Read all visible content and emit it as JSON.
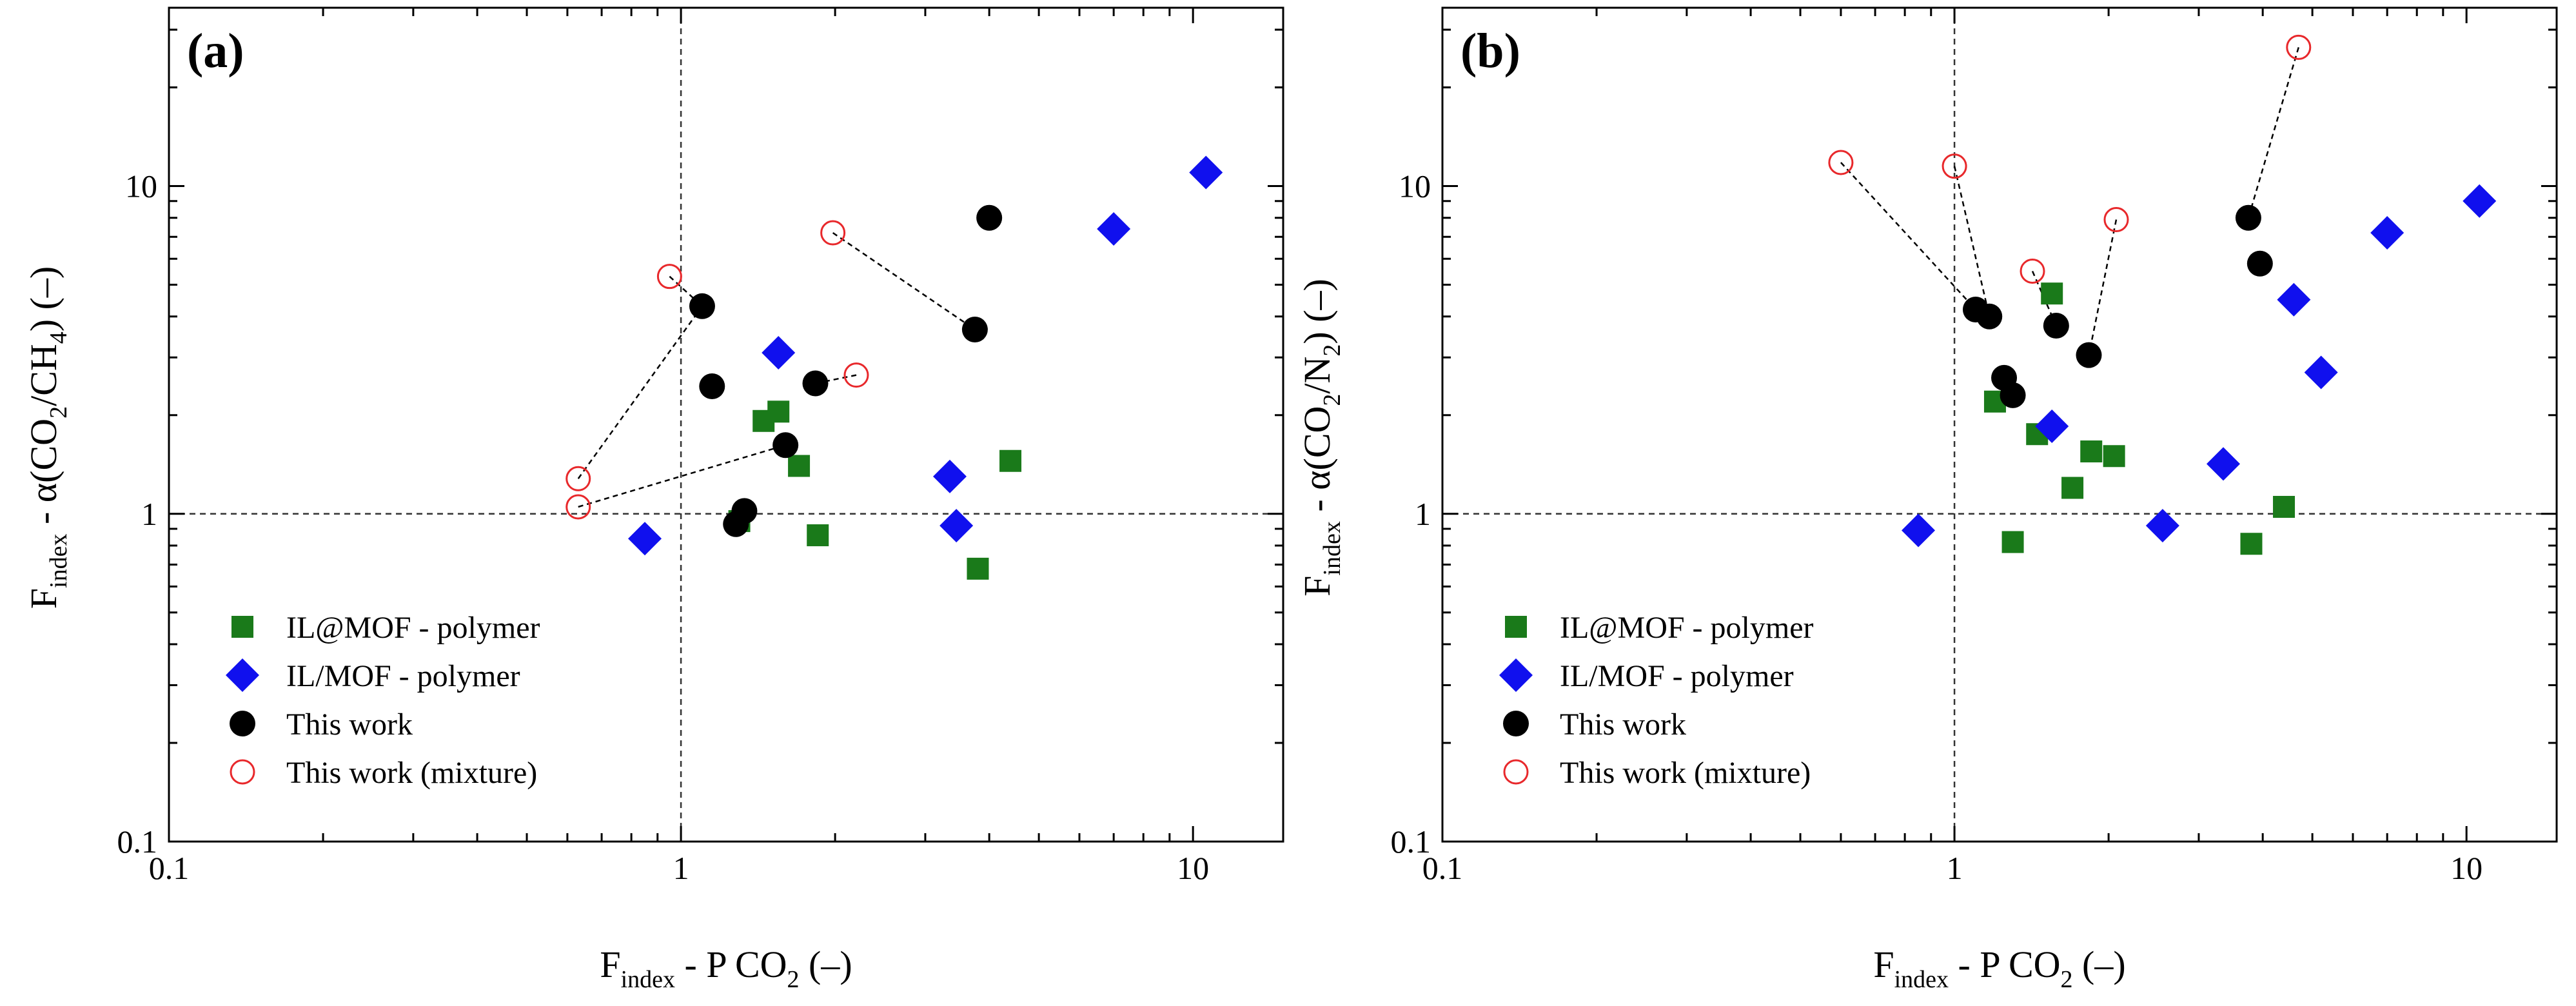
{
  "chart_data": [
    {
      "type": "scatter",
      "panel_label": "(a)",
      "xscale": "log",
      "yscale": "log",
      "xlim": [
        0.1,
        15
      ],
      "ylim": [
        0.1,
        35
      ],
      "x_ticks": [
        {
          "value": 0.1,
          "label": "0.1"
        },
        {
          "value": 1,
          "label": "1"
        },
        {
          "value": 10,
          "label": "10"
        }
      ],
      "y_ticks": [
        {
          "value": 0.1,
          "label": "0.1"
        },
        {
          "value": 1,
          "label": "1"
        },
        {
          "value": 10,
          "label": "10"
        }
      ],
      "xlabel": {
        "main": "F",
        "sub": "index",
        "rest": " - P CO",
        "sub2": "2",
        "tail": " (–)"
      },
      "ylabel": {
        "main": "F",
        "sub": "index",
        "rest": " - α(CO",
        "sub2": "2",
        "mid": "/CH",
        "sub3": "4",
        "tail": ") (–)"
      },
      "reference_lines": {
        "x": 1,
        "y": 1
      },
      "legend_position": "bottom-left",
      "series": [
        {
          "name": "IL@MOF - polymer",
          "marker": "square",
          "color": "#1a7a1a",
          "points": [
            [
              1.3,
              0.95
            ],
            [
              1.45,
              1.92
            ],
            [
              1.55,
              2.05
            ],
            [
              1.7,
              1.4
            ],
            [
              1.85,
              0.86
            ],
            [
              3.8,
              0.68
            ],
            [
              4.4,
              1.45
            ]
          ]
        },
        {
          "name": "IL/MOF - polymer",
          "marker": "diamond",
          "color": "#1010ee",
          "points": [
            [
              0.85,
              0.84
            ],
            [
              1.55,
              3.1
            ],
            [
              3.35,
              1.3
            ],
            [
              3.45,
              0.92
            ],
            [
              7.0,
              7.4
            ],
            [
              10.6,
              11.0
            ]
          ]
        },
        {
          "name": "This work",
          "marker": "circle",
          "color": "#000000",
          "points": [
            [
              1.1,
              4.3
            ],
            [
              1.15,
              2.45
            ],
            [
              1.28,
              0.93
            ],
            [
              1.33,
              1.02
            ],
            [
              1.6,
              1.62
            ],
            [
              1.83,
              2.5
            ],
            [
              3.75,
              3.65
            ],
            [
              4.0,
              8.0
            ]
          ]
        },
        {
          "name": "This work (mixture)",
          "marker": "open-circle",
          "color": "#e8282b",
          "points": [
            [
              0.63,
              1.28
            ],
            [
              0.63,
              1.05
            ],
            [
              0.95,
              5.3
            ],
            [
              1.98,
              7.2
            ],
            [
              2.2,
              2.65
            ]
          ]
        }
      ],
      "connections": [
        [
          [
            0.95,
            5.3
          ],
          [
            1.1,
            4.3
          ]
        ],
        [
          [
            0.63,
            1.28
          ],
          [
            1.1,
            4.3
          ]
        ],
        [
          [
            0.63,
            1.05
          ],
          [
            1.6,
            1.62
          ]
        ],
        [
          [
            1.98,
            7.2
          ],
          [
            3.75,
            3.65
          ]
        ],
        [
          [
            2.2,
            2.65
          ],
          [
            1.83,
            2.5
          ]
        ]
      ]
    },
    {
      "type": "scatter",
      "panel_label": "(b)",
      "xscale": "log",
      "yscale": "log",
      "xlim": [
        0.1,
        15
      ],
      "ylim": [
        0.1,
        35
      ],
      "x_ticks": [
        {
          "value": 0.1,
          "label": "0.1"
        },
        {
          "value": 1,
          "label": "1"
        },
        {
          "value": 10,
          "label": "10"
        }
      ],
      "y_ticks": [
        {
          "value": 0.1,
          "label": "0.1"
        },
        {
          "value": 1,
          "label": "1"
        },
        {
          "value": 10,
          "label": "10"
        }
      ],
      "xlabel": {
        "main": "F",
        "sub": "index",
        "rest": " - P CO",
        "sub2": "2",
        "tail": " (–)"
      },
      "ylabel": {
        "main": "F",
        "sub": "index",
        "rest": " - α(CO",
        "sub2": "2",
        "mid": "/N",
        "sub3": "2",
        "tail": ") (–)"
      },
      "reference_lines": {
        "x": 1,
        "y": 1
      },
      "legend_position": "bottom-left",
      "series": [
        {
          "name": "IL@MOF - polymer",
          "marker": "square",
          "color": "#1a7a1a",
          "points": [
            [
              1.2,
              2.2
            ],
            [
              1.3,
              0.82
            ],
            [
              1.45,
              1.75
            ],
            [
              1.55,
              4.7
            ],
            [
              1.7,
              1.2
            ],
            [
              1.85,
              1.55
            ],
            [
              2.05,
              1.5
            ],
            [
              3.8,
              0.81
            ],
            [
              4.4,
              1.05
            ]
          ]
        },
        {
          "name": "IL/MOF - polymer",
          "marker": "diamond",
          "color": "#1010ee",
          "points": [
            [
              0.85,
              0.89
            ],
            [
              1.55,
              1.85
            ],
            [
              2.55,
              0.92
            ],
            [
              3.35,
              1.42
            ],
            [
              4.6,
              4.5
            ],
            [
              5.2,
              2.7
            ],
            [
              7.0,
              7.2
            ],
            [
              10.6,
              9.0
            ]
          ]
        },
        {
          "name": "This work",
          "marker": "circle",
          "color": "#000000",
          "points": [
            [
              1.1,
              4.2
            ],
            [
              1.17,
              4.0
            ],
            [
              1.25,
              2.6
            ],
            [
              1.3,
              2.3
            ],
            [
              1.58,
              3.75
            ],
            [
              1.83,
              3.05
            ],
            [
              3.75,
              8.0
            ],
            [
              3.95,
              5.8
            ]
          ]
        },
        {
          "name": "This work (mixture)",
          "marker": "open-circle",
          "color": "#e8282b",
          "points": [
            [
              0.6,
              11.8
            ],
            [
              1.0,
              11.5
            ],
            [
              1.42,
              5.5
            ],
            [
              2.07,
              7.9
            ],
            [
              4.7,
              26.5
            ]
          ]
        }
      ],
      "connections": [
        [
          [
            0.6,
            11.8
          ],
          [
            1.1,
            4.2
          ]
        ],
        [
          [
            1.0,
            11.5
          ],
          [
            1.17,
            4.0
          ]
        ],
        [
          [
            1.42,
            5.5
          ],
          [
            1.58,
            3.75
          ]
        ],
        [
          [
            2.07,
            7.9
          ],
          [
            1.83,
            3.05
          ]
        ],
        [
          [
            4.7,
            26.5
          ],
          [
            3.75,
            8.0
          ]
        ]
      ]
    }
  ]
}
